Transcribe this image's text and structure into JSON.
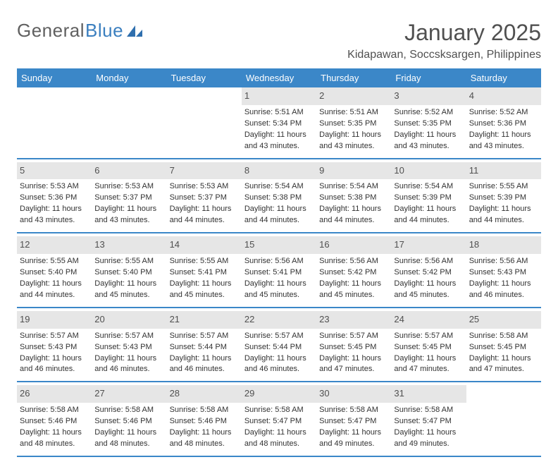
{
  "brand": {
    "word1": "General",
    "word2": "Blue"
  },
  "title": "January 2025",
  "location": "Kidapawan, Soccsksargen, Philippines",
  "colors": {
    "header_bg": "#3b87c8",
    "header_text": "#ffffff",
    "daynum_bg": "#e6e6e6",
    "rule": "#3b87c8",
    "body_text": "#323232",
    "title_text": "#505050"
  },
  "day_labels": [
    "Sunday",
    "Monday",
    "Tuesday",
    "Wednesday",
    "Thursday",
    "Friday",
    "Saturday"
  ],
  "weeks": [
    [
      {
        "empty": true
      },
      {
        "empty": true
      },
      {
        "empty": true
      },
      {
        "day": "1",
        "sunrise": "5:51 AM",
        "sunset": "5:34 PM",
        "daylight": "11 hours and 43 minutes."
      },
      {
        "day": "2",
        "sunrise": "5:51 AM",
        "sunset": "5:35 PM",
        "daylight": "11 hours and 43 minutes."
      },
      {
        "day": "3",
        "sunrise": "5:52 AM",
        "sunset": "5:35 PM",
        "daylight": "11 hours and 43 minutes."
      },
      {
        "day": "4",
        "sunrise": "5:52 AM",
        "sunset": "5:36 PM",
        "daylight": "11 hours and 43 minutes."
      }
    ],
    [
      {
        "day": "5",
        "sunrise": "5:53 AM",
        "sunset": "5:36 PM",
        "daylight": "11 hours and 43 minutes."
      },
      {
        "day": "6",
        "sunrise": "5:53 AM",
        "sunset": "5:37 PM",
        "daylight": "11 hours and 43 minutes."
      },
      {
        "day": "7",
        "sunrise": "5:53 AM",
        "sunset": "5:37 PM",
        "daylight": "11 hours and 44 minutes."
      },
      {
        "day": "8",
        "sunrise": "5:54 AM",
        "sunset": "5:38 PM",
        "daylight": "11 hours and 44 minutes."
      },
      {
        "day": "9",
        "sunrise": "5:54 AM",
        "sunset": "5:38 PM",
        "daylight": "11 hours and 44 minutes."
      },
      {
        "day": "10",
        "sunrise": "5:54 AM",
        "sunset": "5:39 PM",
        "daylight": "11 hours and 44 minutes."
      },
      {
        "day": "11",
        "sunrise": "5:55 AM",
        "sunset": "5:39 PM",
        "daylight": "11 hours and 44 minutes."
      }
    ],
    [
      {
        "day": "12",
        "sunrise": "5:55 AM",
        "sunset": "5:40 PM",
        "daylight": "11 hours and 44 minutes."
      },
      {
        "day": "13",
        "sunrise": "5:55 AM",
        "sunset": "5:40 PM",
        "daylight": "11 hours and 45 minutes."
      },
      {
        "day": "14",
        "sunrise": "5:55 AM",
        "sunset": "5:41 PM",
        "daylight": "11 hours and 45 minutes."
      },
      {
        "day": "15",
        "sunrise": "5:56 AM",
        "sunset": "5:41 PM",
        "daylight": "11 hours and 45 minutes."
      },
      {
        "day": "16",
        "sunrise": "5:56 AM",
        "sunset": "5:42 PM",
        "daylight": "11 hours and 45 minutes."
      },
      {
        "day": "17",
        "sunrise": "5:56 AM",
        "sunset": "5:42 PM",
        "daylight": "11 hours and 45 minutes."
      },
      {
        "day": "18",
        "sunrise": "5:56 AM",
        "sunset": "5:43 PM",
        "daylight": "11 hours and 46 minutes."
      }
    ],
    [
      {
        "day": "19",
        "sunrise": "5:57 AM",
        "sunset": "5:43 PM",
        "daylight": "11 hours and 46 minutes."
      },
      {
        "day": "20",
        "sunrise": "5:57 AM",
        "sunset": "5:43 PM",
        "daylight": "11 hours and 46 minutes."
      },
      {
        "day": "21",
        "sunrise": "5:57 AM",
        "sunset": "5:44 PM",
        "daylight": "11 hours and 46 minutes."
      },
      {
        "day": "22",
        "sunrise": "5:57 AM",
        "sunset": "5:44 PM",
        "daylight": "11 hours and 46 minutes."
      },
      {
        "day": "23",
        "sunrise": "5:57 AM",
        "sunset": "5:45 PM",
        "daylight": "11 hours and 47 minutes."
      },
      {
        "day": "24",
        "sunrise": "5:57 AM",
        "sunset": "5:45 PM",
        "daylight": "11 hours and 47 minutes."
      },
      {
        "day": "25",
        "sunrise": "5:58 AM",
        "sunset": "5:45 PM",
        "daylight": "11 hours and 47 minutes."
      }
    ],
    [
      {
        "day": "26",
        "sunrise": "5:58 AM",
        "sunset": "5:46 PM",
        "daylight": "11 hours and 48 minutes."
      },
      {
        "day": "27",
        "sunrise": "5:58 AM",
        "sunset": "5:46 PM",
        "daylight": "11 hours and 48 minutes."
      },
      {
        "day": "28",
        "sunrise": "5:58 AM",
        "sunset": "5:46 PM",
        "daylight": "11 hours and 48 minutes."
      },
      {
        "day": "29",
        "sunrise": "5:58 AM",
        "sunset": "5:47 PM",
        "daylight": "11 hours and 48 minutes."
      },
      {
        "day": "30",
        "sunrise": "5:58 AM",
        "sunset": "5:47 PM",
        "daylight": "11 hours and 49 minutes."
      },
      {
        "day": "31",
        "sunrise": "5:58 AM",
        "sunset": "5:47 PM",
        "daylight": "11 hours and 49 minutes."
      },
      {
        "empty": true
      }
    ]
  ],
  "labels": {
    "sunrise_prefix": "Sunrise: ",
    "sunset_prefix": "Sunset: ",
    "daylight_prefix": "Daylight: "
  }
}
